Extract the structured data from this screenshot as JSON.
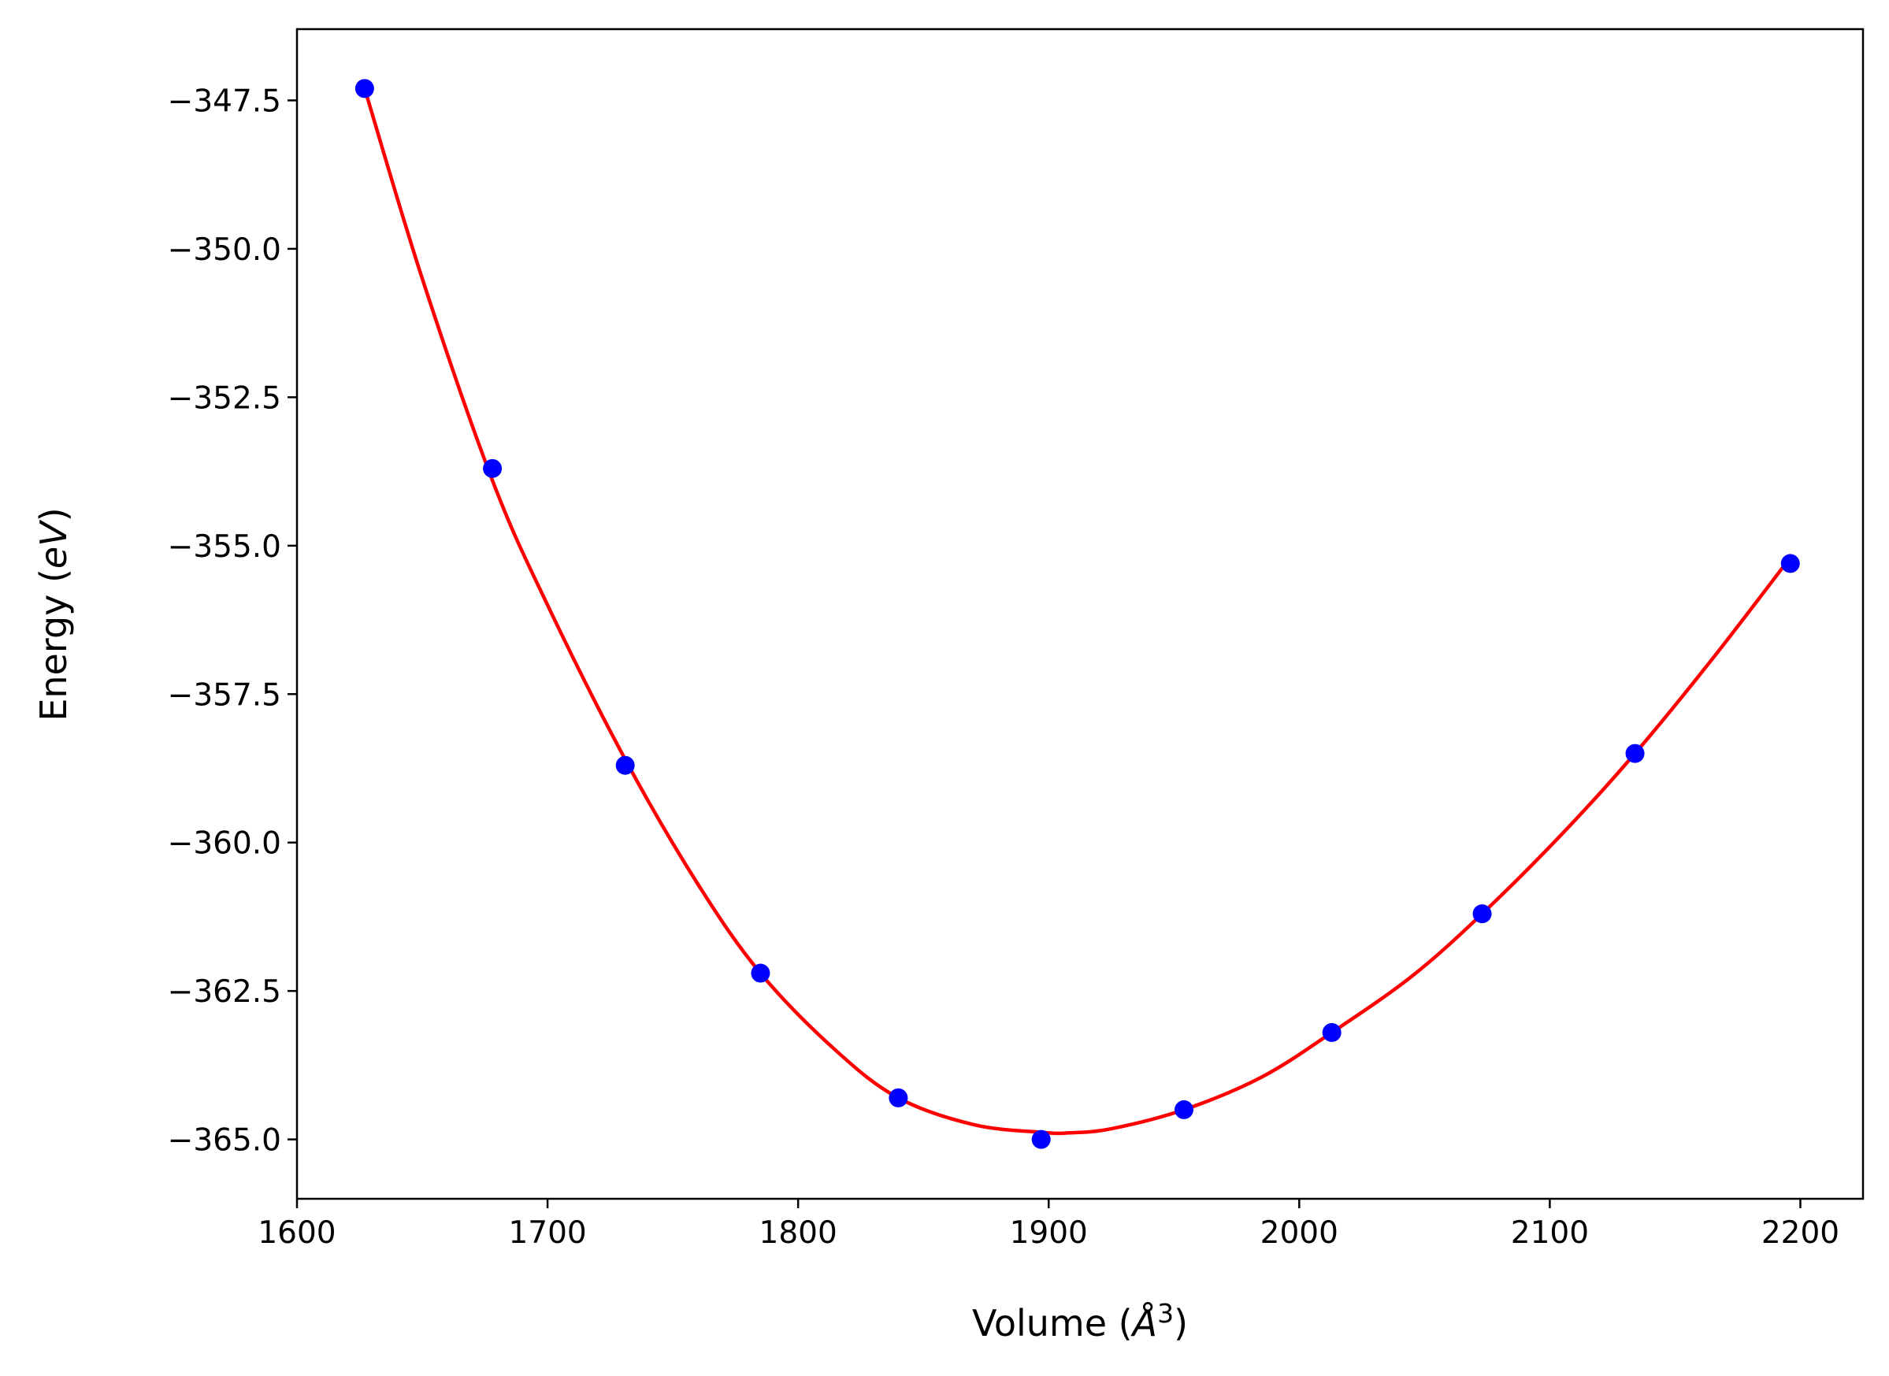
{
  "chart_data": {
    "type": "scatter",
    "xlabel": "Volume (Å³)",
    "xlabel_parts": {
      "prefix": "Volume (",
      "unit": "Å",
      "exponent": "3",
      "suffix": ")"
    },
    "ylabel": "Energy (eV)",
    "ylabel_parts": {
      "prefix": "Energy (",
      "unit": "eV",
      "suffix": ")"
    },
    "xlim": [
      1600,
      2225
    ],
    "ylim": [
      -366.0,
      -346.3
    ],
    "x_ticks": [
      1600,
      1700,
      1800,
      1900,
      2000,
      2100,
      2200
    ],
    "x_tick_labels": [
      "1600",
      "1700",
      "1800",
      "1900",
      "2000",
      "2100",
      "2200"
    ],
    "y_ticks": [
      -347.5,
      -350.0,
      -352.5,
      -355.0,
      -357.5,
      -360.0,
      -362.5,
      -365.0
    ],
    "y_tick_labels": [
      "−347.5",
      "−350.0",
      "−352.5",
      "−355.0",
      "−357.5",
      "−360.0",
      "−362.5",
      "−365.0"
    ],
    "grid": false,
    "series": [
      {
        "kind": "points",
        "color": "#0000ff",
        "x": [
          1627,
          1678,
          1731,
          1785,
          1840,
          1897,
          1954,
          2013,
          2073,
          2134,
          2196
        ],
        "y": [
          -347.3,
          -353.7,
          -358.7,
          -362.2,
          -364.3,
          -365.0,
          -364.5,
          -363.2,
          -361.2,
          -358.5,
          -355.3
        ]
      },
      {
        "kind": "fit-line",
        "color": "#ff0000",
        "x": [
          1627,
          1650,
          1678,
          1700,
          1731,
          1760,
          1785,
          1815,
          1840,
          1870,
          1897,
          1908,
          1925,
          1954,
          1985,
          2013,
          2045,
          2073,
          2105,
          2134,
          2165,
          2196
        ],
        "y": [
          -347.3,
          -350.5,
          -353.9,
          -356.0,
          -358.6,
          -360.7,
          -362.2,
          -363.5,
          -364.3,
          -364.75,
          -364.88,
          -364.89,
          -364.82,
          -364.5,
          -363.95,
          -363.2,
          -362.25,
          -361.2,
          -359.85,
          -358.5,
          -356.9,
          -355.2
        ]
      }
    ]
  }
}
